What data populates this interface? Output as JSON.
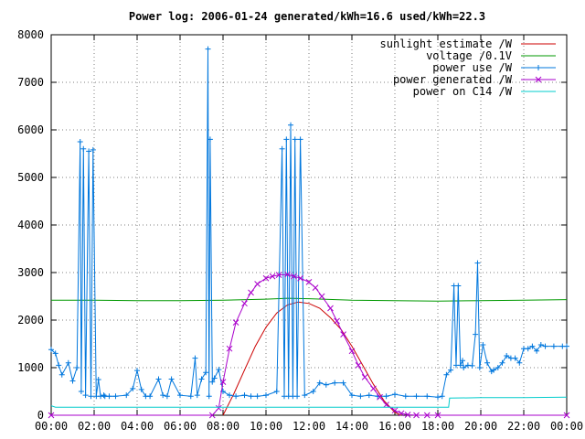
{
  "chart_data": {
    "type": "line",
    "title": "Power log: 2006-01-24 generated/kWh=16.6 used/kWh=22.3",
    "xlabel": "",
    "ylabel": "",
    "xlim": [
      0,
      24
    ],
    "ylim": [
      0,
      8000
    ],
    "x_ticks": [
      "00:00",
      "02:00",
      "04:00",
      "06:00",
      "08:00",
      "10:00",
      "12:00",
      "14:00",
      "16:00",
      "18:00",
      "20:00",
      "22:00",
      "00:00"
    ],
    "y_ticks": [
      "0",
      "1000",
      "2000",
      "3000",
      "4000",
      "5000",
      "6000",
      "7000",
      "8000"
    ],
    "grid": true,
    "legend_position": "top-right",
    "series": [
      {
        "name": "sunlight estimate /W",
        "color": "#cc0000",
        "marker": "none",
        "x": [
          8.0,
          8.5,
          9.0,
          9.5,
          10.0,
          10.5,
          11.0,
          11.5,
          12.0,
          12.5,
          13.0,
          13.5,
          14.0,
          14.5,
          15.0,
          15.5,
          16.0,
          16.3
        ],
        "y": [
          0,
          450,
          950,
          1450,
          1850,
          2150,
          2320,
          2380,
          2350,
          2250,
          2050,
          1800,
          1450,
          1050,
          650,
          300,
          60,
          0
        ]
      },
      {
        "name": "voltage /0.1V",
        "color": "#009900",
        "marker": "none",
        "x": [
          0,
          2,
          4,
          6,
          8,
          10,
          11,
          12,
          14,
          16,
          18,
          20,
          22,
          24
        ],
        "y": [
          2420,
          2420,
          2410,
          2410,
          2420,
          2440,
          2460,
          2450,
          2420,
          2410,
          2400,
          2410,
          2420,
          2430
        ]
      },
      {
        "name": "power use /W",
        "color": "#0077dd",
        "marker": "+",
        "x": [
          0.0,
          0.2,
          0.35,
          0.5,
          0.8,
          1.0,
          1.2,
          1.35,
          1.4,
          1.5,
          1.6,
          1.75,
          1.85,
          1.95,
          2.1,
          2.2,
          2.3,
          2.45,
          2.5,
          2.7,
          3.0,
          3.5,
          3.8,
          4.0,
          4.2,
          4.4,
          4.6,
          5.0,
          5.2,
          5.4,
          5.6,
          6.0,
          6.5,
          6.7,
          6.8,
          7.0,
          7.2,
          7.3,
          7.35,
          7.4,
          7.5,
          7.6,
          7.8,
          8.0,
          8.3,
          8.6,
          9.0,
          9.3,
          9.6,
          10.0,
          10.5,
          10.75,
          10.85,
          10.95,
          11.05,
          11.15,
          11.25,
          11.35,
          11.45,
          11.6,
          11.8,
          12.2,
          12.5,
          12.8,
          13.2,
          13.6,
          14.0,
          14.4,
          14.8,
          15.2,
          15.6,
          16.0,
          16.5,
          17.0,
          17.5,
          18.0,
          18.2,
          18.4,
          18.6,
          18.75,
          18.85,
          18.95,
          19.05,
          19.15,
          19.2,
          19.4,
          19.6,
          19.75,
          19.85,
          19.95,
          20.1,
          20.3,
          20.5,
          20.6,
          20.8,
          21.0,
          21.2,
          21.4,
          21.6,
          21.8,
          22.0,
          22.2,
          22.4,
          22.6,
          22.8,
          23.0,
          23.4,
          23.8,
          24.0
        ],
        "y": [
          1380,
          1300,
          1050,
          850,
          1100,
          720,
          1000,
          5750,
          500,
          5600,
          420,
          5550,
          400,
          5580,
          400,
          750,
          400,
          420,
          400,
          400,
          400,
          420,
          560,
          940,
          540,
          400,
          400,
          760,
          420,
          400,
          760,
          420,
          400,
          1200,
          420,
          760,
          900,
          7700,
          400,
          5800,
          700,
          780,
          960,
          500,
          420,
          400,
          420,
          400,
          400,
          420,
          500,
          5600,
          400,
          5800,
          400,
          6100,
          400,
          5800,
          400,
          5800,
          420,
          500,
          680,
          640,
          680,
          680,
          420,
          400,
          420,
          400,
          400,
          440,
          400,
          400,
          400,
          380,
          400,
          850,
          950,
          2720,
          1050,
          2720,
          1050,
          1150,
          1000,
          1050,
          1040,
          1700,
          3200,
          1000,
          1480,
          1100,
          920,
          950,
          1000,
          1100,
          1250,
          1200,
          1200,
          1100,
          1400,
          1400,
          1450,
          1350,
          1480,
          1450,
          1450,
          1450,
          1450
        ]
      },
      {
        "name": "power generated /W",
        "color": "#aa00cc",
        "marker": "x",
        "x": [
          0,
          7.5,
          7.8,
          8.0,
          8.3,
          8.6,
          9.0,
          9.3,
          9.6,
          10.0,
          10.3,
          10.6,
          11.0,
          11.3,
          11.6,
          12.0,
          12.3,
          12.6,
          13.0,
          13.3,
          13.6,
          14.0,
          14.3,
          14.6,
          15.0,
          15.3,
          15.6,
          16.0,
          16.3,
          16.6,
          17.0,
          17.5,
          18.0,
          24.0
        ],
        "y": [
          0,
          0,
          150,
          700,
          1400,
          1950,
          2350,
          2580,
          2760,
          2880,
          2920,
          2950,
          2960,
          2920,
          2880,
          2800,
          2680,
          2500,
          2250,
          1980,
          1700,
          1350,
          1050,
          800,
          560,
          380,
          220,
          100,
          40,
          10,
          0,
          0,
          0,
          0
        ]
      },
      {
        "name": "power on C14 /W",
        "color": "#00cccc",
        "marker": "none",
        "x": [
          0,
          0.2,
          2.0,
          4.0,
          6.0,
          8.0,
          10.0,
          12.0,
          14.0,
          16.0,
          18.0,
          18.5,
          18.55,
          20.0,
          22.0,
          24.0
        ],
        "y": [
          200,
          170,
          170,
          170,
          170,
          170,
          170,
          170,
          170,
          170,
          170,
          170,
          360,
          370,
          370,
          380
        ]
      }
    ]
  }
}
